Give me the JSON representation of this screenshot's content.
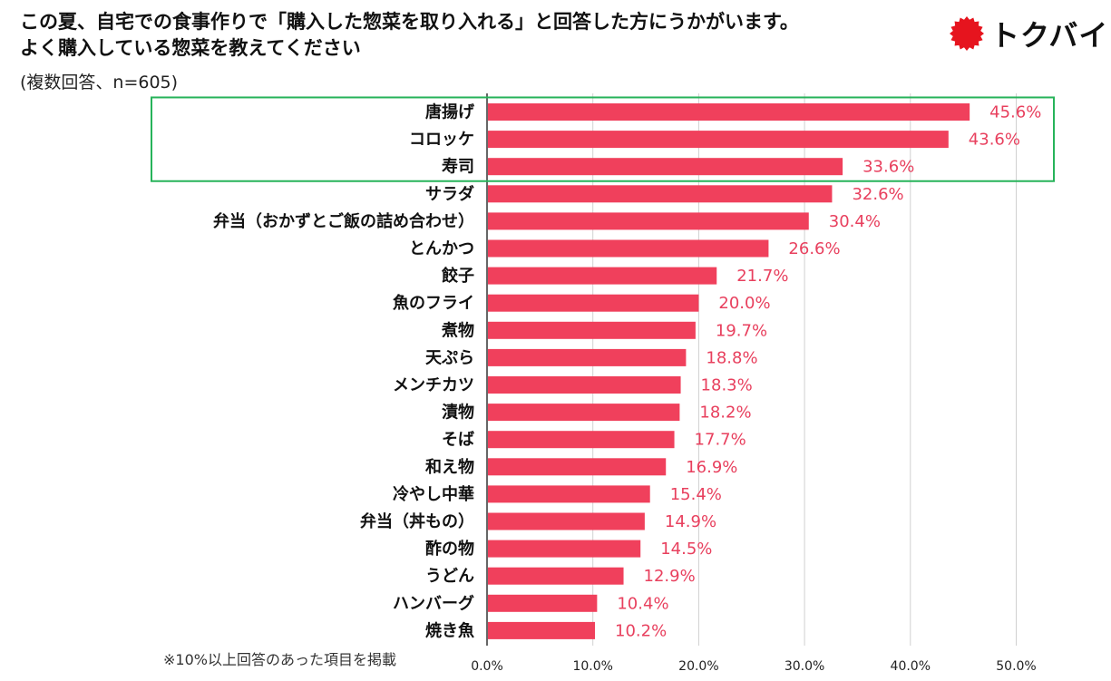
{
  "header": {
    "title_line1": "この夏、自宅での食事作りで「購入した惣菜を取り入れる」と回答した方にうかがいます。",
    "title_line2": "よく購入している惣菜を教えてください",
    "subtitle": "(複数回答、n=605)"
  },
  "logo": {
    "text": "トクバイ",
    "color": "#e6141e"
  },
  "footnote": "※10%以上回答のあった項目を掲載",
  "colors": {
    "bar": "#f0405c",
    "label": "#e8405e",
    "highlight_box": "#27b35a",
    "grid": "#d0d0d0"
  },
  "chart_data": {
    "type": "bar",
    "orientation": "horizontal",
    "title": "この夏、自宅での食事作りで「購入した惣菜を取り入れる」と回答した方にうかがいます。よく購入している惣菜を教えてください",
    "xlabel": "",
    "ylabel": "",
    "xlim": [
      0,
      50
    ],
    "x_ticks": [
      "0.0%",
      "10.0%",
      "20.0%",
      "30.0%",
      "40.0%",
      "50.0%"
    ],
    "x_tick_values": [
      0,
      10,
      20,
      30,
      40,
      50
    ],
    "grid": true,
    "highlighted_categories": [
      "唐揚げ",
      "コロッケ",
      "寿司"
    ],
    "categories": [
      "唐揚げ",
      "コロッケ",
      "寿司",
      "サラダ",
      "弁当（おかずとご飯の詰め合わせ）",
      "とんかつ",
      "餃子",
      "魚のフライ",
      "煮物",
      "天ぷら",
      "メンチカツ",
      "漬物",
      "そば",
      "和え物",
      "冷やし中華",
      "弁当（丼もの）",
      "酢の物",
      "うどん",
      "ハンバーグ",
      "焼き魚"
    ],
    "values": [
      45.6,
      43.6,
      33.6,
      32.6,
      30.4,
      26.6,
      21.7,
      20.0,
      19.7,
      18.8,
      18.3,
      18.2,
      17.7,
      16.9,
      15.4,
      14.9,
      14.5,
      12.9,
      10.4,
      10.2
    ],
    "value_labels": [
      "45.6%",
      "43.6%",
      "33.6%",
      "32.6%",
      "30.4%",
      "26.6%",
      "21.7%",
      "20.0%",
      "19.7%",
      "18.8%",
      "18.3%",
      "18.2%",
      "17.7%",
      "16.9%",
      "15.4%",
      "14.9%",
      "14.5%",
      "12.9%",
      "10.4%",
      "10.2%"
    ]
  }
}
